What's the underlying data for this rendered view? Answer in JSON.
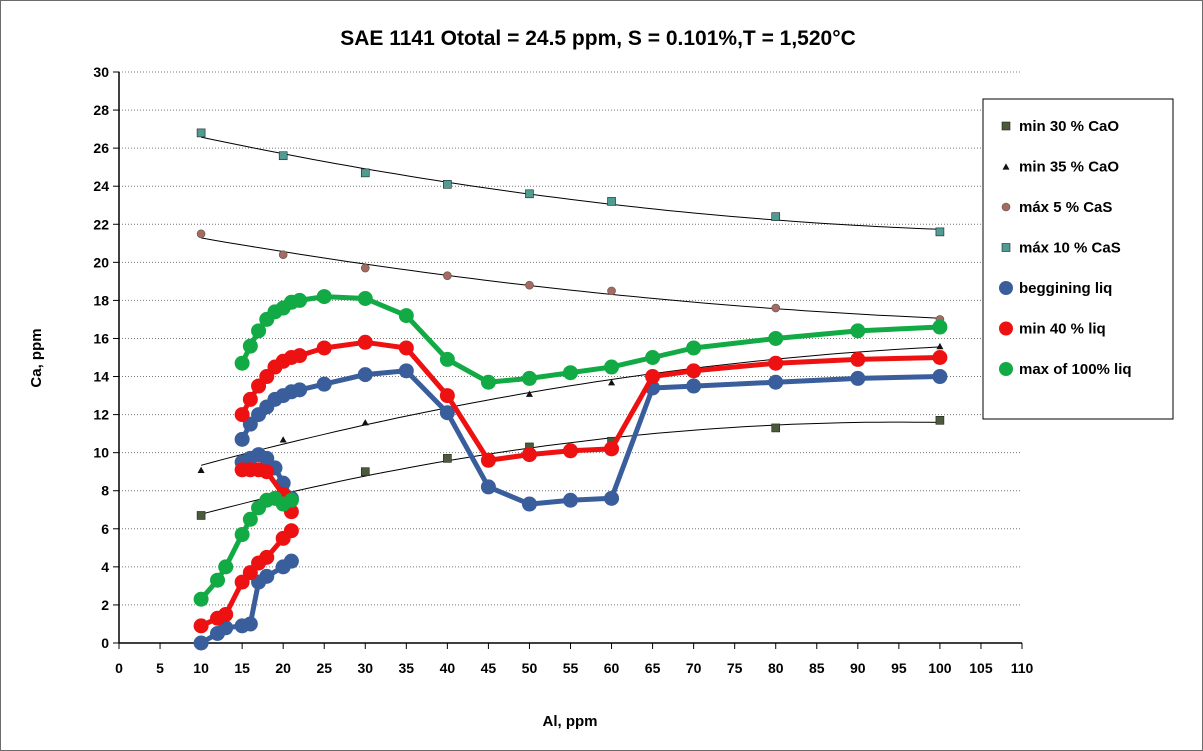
{
  "chart_data": {
    "type": "scatter",
    "title": "SAE 1141 Ototal = 24.5 ppm, S = 0.101%,T = 1,520°C",
    "xlabel": "Al, ppm",
    "ylabel": "Ca, ppm",
    "xlim": [
      0,
      110
    ],
    "ylim": [
      0,
      30
    ],
    "xticks": [
      0,
      5,
      10,
      15,
      20,
      25,
      30,
      35,
      40,
      45,
      50,
      55,
      60,
      65,
      70,
      75,
      80,
      85,
      90,
      95,
      100,
      105,
      110
    ],
    "yticks": [
      0,
      2,
      4,
      6,
      8,
      10,
      12,
      14,
      16,
      18,
      20,
      22,
      24,
      26,
      28,
      30
    ],
    "grid": "horizontal dotted",
    "legend_position": "right",
    "series": [
      {
        "name": "min 30 % CaO",
        "marker": "square",
        "color": "#4a5a3a",
        "trendline": true,
        "points": [
          [
            10,
            6.7
          ],
          [
            20,
            7.7
          ],
          [
            30,
            9.0
          ],
          [
            40,
            9.7
          ],
          [
            50,
            10.3
          ],
          [
            60,
            10.6
          ],
          [
            80,
            11.3
          ],
          [
            100,
            11.7
          ]
        ]
      },
      {
        "name": "min 35 % CaO",
        "marker": "triangle",
        "color": "#111111",
        "trendline": true,
        "points": [
          [
            10,
            9.1
          ],
          [
            20,
            10.7
          ],
          [
            30,
            11.6
          ],
          [
            50,
            13.1
          ],
          [
            60,
            13.7
          ],
          [
            100,
            15.6
          ]
        ]
      },
      {
        "name": "máx 5 % CaS",
        "marker": "circle",
        "color": "#a56b60",
        "trendline": true,
        "points": [
          [
            10,
            21.5
          ],
          [
            20,
            20.4
          ],
          [
            30,
            19.7
          ],
          [
            40,
            19.3
          ],
          [
            50,
            18.8
          ],
          [
            60,
            18.5
          ],
          [
            80,
            17.6
          ],
          [
            100,
            17.0
          ]
        ]
      },
      {
        "name": "máx 10 % CaS",
        "marker": "square",
        "color": "#4f9c93",
        "trendline": true,
        "points": [
          [
            10,
            26.8
          ],
          [
            20,
            25.6
          ],
          [
            30,
            24.7
          ],
          [
            40,
            24.1
          ],
          [
            50,
            23.6
          ],
          [
            60,
            23.2
          ],
          [
            80,
            22.4
          ],
          [
            100,
            21.6
          ]
        ]
      },
      {
        "name": "beggining liq",
        "marker": "circle",
        "color": "#3a5e9c",
        "line": true,
        "segments": [
          [
            [
              15,
              10.7
            ],
            [
              16,
              11.5
            ],
            [
              17,
              12.0
            ],
            [
              18,
              12.4
            ],
            [
              19,
              12.8
            ],
            [
              20,
              13.0
            ],
            [
              21,
              13.2
            ],
            [
              22,
              13.3
            ],
            [
              25,
              13.6
            ],
            [
              30,
              14.1
            ],
            [
              35,
              14.3
            ],
            [
              40,
              12.1
            ],
            [
              45,
              8.2
            ],
            [
              50,
              7.3
            ],
            [
              55,
              7.5
            ],
            [
              60,
              7.6
            ],
            [
              65,
              13.4
            ],
            [
              70,
              13.5
            ],
            [
              80,
              13.7
            ],
            [
              90,
              13.9
            ],
            [
              100,
              14.0
            ]
          ],
          [
            [
              15,
              9.5
            ],
            [
              16,
              9.7
            ],
            [
              17,
              9.9
            ],
            [
              18,
              9.7
            ],
            [
              19,
              9.2
            ],
            [
              20,
              8.4
            ],
            [
              21,
              7.6
            ]
          ],
          [
            [
              10,
              0.0
            ],
            [
              12,
              0.5
            ],
            [
              13,
              0.8
            ],
            [
              15,
              0.9
            ],
            [
              16,
              1.0
            ],
            [
              17,
              3.2
            ],
            [
              18,
              3.5
            ],
            [
              20,
              4.0
            ],
            [
              21,
              4.3
            ]
          ]
        ]
      },
      {
        "name": "min 40 % liq",
        "marker": "circle",
        "color": "#ee1111",
        "line": true,
        "segments": [
          [
            [
              15,
              12.0
            ],
            [
              16,
              12.8
            ],
            [
              17,
              13.5
            ],
            [
              18,
              14.0
            ],
            [
              19,
              14.5
            ],
            [
              20,
              14.8
            ],
            [
              21,
              15.0
            ],
            [
              22,
              15.1
            ],
            [
              25,
              15.5
            ],
            [
              30,
              15.8
            ],
            [
              35,
              15.5
            ],
            [
              40,
              13.0
            ],
            [
              45,
              9.6
            ],
            [
              50,
              9.9
            ],
            [
              55,
              10.1
            ],
            [
              60,
              10.2
            ],
            [
              65,
              14.0
            ],
            [
              70,
              14.3
            ],
            [
              80,
              14.7
            ],
            [
              90,
              14.9
            ],
            [
              100,
              15.0
            ]
          ],
          [
            [
              15,
              9.1
            ],
            [
              16,
              9.1
            ],
            [
              17,
              9.1
            ],
            [
              18,
              9.0
            ],
            [
              20,
              7.8
            ],
            [
              21,
              6.9
            ]
          ],
          [
            [
              10,
              0.9
            ],
            [
              12,
              1.3
            ],
            [
              13,
              1.5
            ],
            [
              15,
              3.2
            ],
            [
              16,
              3.7
            ],
            [
              17,
              4.2
            ],
            [
              18,
              4.5
            ],
            [
              20,
              5.5
            ],
            [
              21,
              5.9
            ]
          ]
        ]
      },
      {
        "name": "max of  100% liq",
        "marker": "circle",
        "color": "#11aa44",
        "line": true,
        "segments": [
          [
            [
              15,
              14.7
            ],
            [
              16,
              15.6
            ],
            [
              17,
              16.4
            ],
            [
              18,
              17.0
            ],
            [
              19,
              17.4
            ],
            [
              20,
              17.6
            ],
            [
              21,
              17.9
            ],
            [
              22,
              18.0
            ],
            [
              25,
              18.2
            ],
            [
              30,
              18.1
            ],
            [
              35,
              17.2
            ],
            [
              40,
              14.9
            ],
            [
              45,
              13.7
            ],
            [
              50,
              13.9
            ],
            [
              55,
              14.2
            ],
            [
              60,
              14.5
            ],
            [
              65,
              15.0
            ],
            [
              70,
              15.5
            ],
            [
              80,
              16.0
            ],
            [
              90,
              16.4
            ],
            [
              100,
              16.6
            ]
          ],
          [
            [
              10,
              2.3
            ],
            [
              12,
              3.3
            ],
            [
              13,
              4.0
            ],
            [
              15,
              5.7
            ],
            [
              16,
              6.5
            ],
            [
              17,
              7.1
            ],
            [
              18,
              7.5
            ],
            [
              19,
              7.6
            ],
            [
              20,
              7.3
            ],
            [
              21,
              7.5
            ]
          ]
        ]
      }
    ]
  }
}
